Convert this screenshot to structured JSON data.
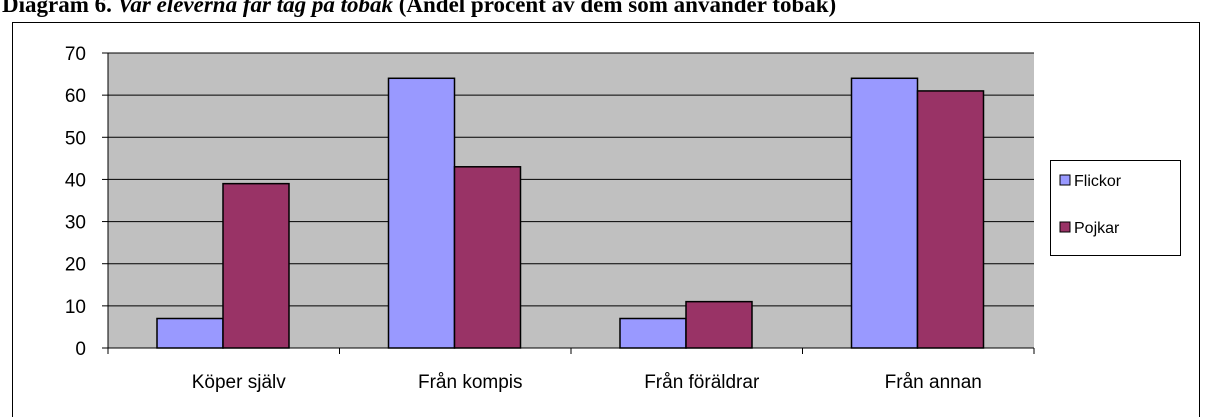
{
  "chart_data": {
    "type": "bar",
    "title": [
      "Diagram 6.",
      "Var eleverna får tag på tobak",
      "(Andel procent av dem som använder tobak)"
    ],
    "categories": [
      "Köper själv",
      "Från kompis",
      "Från föräldrar",
      "Från annan"
    ],
    "series": [
      {
        "name": "Flickor",
        "color": "#9999ff",
        "values": [
          7,
          64,
          7,
          64
        ]
      },
      {
        "name": "Pojkar",
        "color": "#993366",
        "values": [
          39,
          43,
          11,
          61
        ]
      }
    ],
    "ylim": [
      0,
      70
    ],
    "yticks": [
      0,
      10,
      20,
      30,
      40,
      50,
      60,
      70
    ],
    "grid": true,
    "legend": "right"
  }
}
